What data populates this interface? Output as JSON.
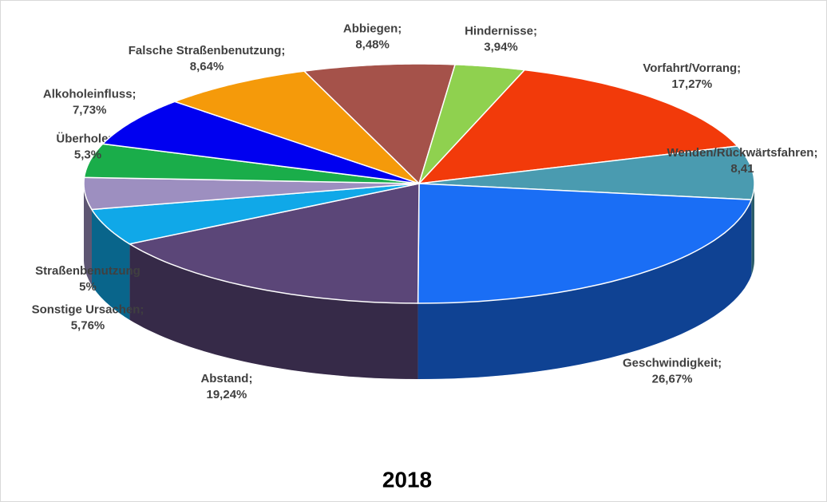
{
  "chart_data": {
    "type": "pie3d",
    "title": "2018",
    "categories": [
      "Abbiegen;",
      "Hindernisse;",
      "Vorfahrt/Vorrang;",
      "Wenden/Rückwärtsfahren;",
      "Geschwindigkeit;",
      "Abstand;",
      "Sonstige Ursachen;",
      "Straßenbenutzung",
      "Überholen;",
      "Alkoholeinfluss;",
      "Falsche Straßenbenutzung;"
    ],
    "values": [
      8.48,
      3.94,
      17.27,
      8.41,
      26.67,
      19.24,
      5.76,
      5,
      5.3,
      7.73,
      8.64
    ],
    "value_labels": [
      "8,48%",
      "3,94%",
      "17,27%",
      "8,41",
      "26,67%",
      "19,24%",
      "5,76%",
      "5%",
      "5,3%",
      "7,73%",
      "8,64%"
    ],
    "colors": [
      "#a5524a",
      "#8fd14f",
      "#f23a0a",
      "#4a9bb0",
      "#1a6ef5",
      "#5b4678",
      "#10a8e8",
      "#9d8fc0",
      "#1aad4a",
      "#0000f0",
      "#f59a0a"
    ]
  }
}
